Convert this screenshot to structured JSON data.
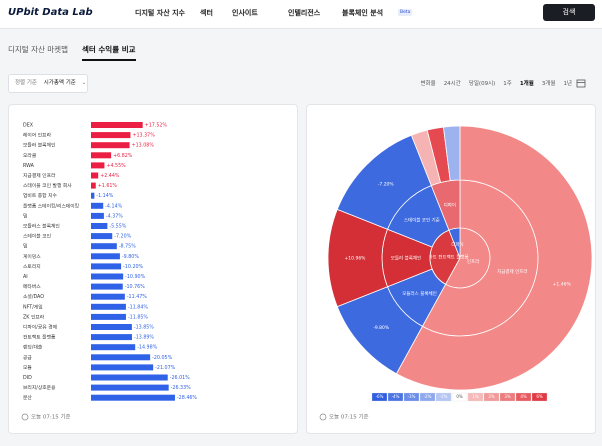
{
  "header": {
    "logo": "UPbit Data Lab",
    "nav": [
      "디지털 자산 지수",
      "섹터",
      "인사이트",
      "인텔리전스",
      "블록체인 분석"
    ],
    "beta": "Beta",
    "search": "검색"
  },
  "tabs": [
    "디지털 자산 마켓맵",
    "섹터 수익률 비교"
  ],
  "filter": {
    "label": "정렬 기준",
    "value": "시가총액 기준"
  },
  "periods": [
    "변화율",
    "24시간",
    "당일(09시)",
    "1주",
    "1개월",
    "3개월",
    "1년"
  ],
  "chart_data": [
    {
      "type": "bar",
      "categories": [
        "DEX",
        "레이어 인프라",
        "모듈러 블록체인",
        "오라클",
        "RWA",
        "지급결제 인프라",
        "스테이블 코인 발행 회사",
        "업비트 종합 지수",
        "플랫폼 스테이킹/리스테이킹",
        "밈",
        "모듈러스 블록체인",
        "스테이블 코인",
        "밈",
        "게이밍스",
        "스토리지",
        "AI",
        "메타버스",
        "소셜/DAO",
        "NFT/게임",
        "ZK 인프라",
        "디파이/공유 경제",
        "컨트랙트 플랫폼",
        "렌딩/대출",
        "공급",
        "모듈",
        "DID",
        "브리지/상호운용",
        "분산"
      ],
      "values": [
        17.52,
        13.37,
        13.08,
        6.82,
        4.55,
        2.44,
        1.61,
        -1.14,
        -4.14,
        -4.37,
        -5.55,
        -7.2,
        -8.75,
        -9.8,
        -10.2,
        -10.9,
        -10.76,
        -11.47,
        -11.84,
        -11.85,
        -13.85,
        -13.89,
        -14.98,
        -20.05,
        -21.07,
        -26.01,
        -26.33,
        -28.46
      ],
      "value_labels": [
        "+17.52%",
        "+13.37%",
        "+13.08%",
        "+6.82%",
        "+4.55%",
        "+2.44%",
        "+1.61%",
        "-1.14%",
        "-4.14%",
        "-4.37%",
        "-5.55%",
        "-7.20%",
        "-8.75%",
        "-9.80%",
        "-10.20%",
        "-10.90%",
        "-10.76%",
        "-11.47%",
        "-11.84%",
        "-11.85%",
        "-13.85%",
        "-13.89%",
        "-14.98%",
        "-20.05%",
        "-21.07%",
        "-26.01%",
        "-26.33%",
        "-28.46%"
      ],
      "positive_color": "#ea1f43",
      "negative_color": "#2f62e6",
      "footnote": "오늘 07:15 기준"
    },
    {
      "type": "sunburst",
      "levels": [
        [
          {
            "name": "인프라",
            "share": 58,
            "color": "#f38888"
          },
          {
            "name": "스마트 컨트랙트 플랫폼",
            "share": 36,
            "color": "#d83a3f"
          },
          {
            "name": "디파이",
            "share": 6,
            "color": "#3e6ae0"
          }
        ],
        [
          {
            "name": "지급결제 인프라",
            "share": 58,
            "color": "#f38888"
          },
          {
            "name": "모듈러스 블록체인",
            "share": 11,
            "color": "#3e6ae0"
          },
          {
            "name": "모듈러 블록체인",
            "share": 12,
            "color": "#d42f37"
          },
          {
            "name": "스테이블 코인 기준",
            "share": 13,
            "color": "#3e6ae0"
          },
          {
            "name": "디파이",
            "share": 6,
            "color": "#e86a70"
          }
        ],
        [
          {
            "label": "+1.46%",
            "share": 58,
            "color": "#f38888"
          },
          {
            "label": "-9.80%",
            "share": 11,
            "color": "#3e6ae0"
          },
          {
            "label": "+10.96%",
            "share": 12,
            "color": "#d42f37"
          },
          {
            "label": "-7.20%",
            "share": 13,
            "color": "#3e6ae0"
          },
          {
            "share": 2,
            "color": "#f6b3b3"
          },
          {
            "share": 2,
            "color": "#e54a50"
          },
          {
            "share": 2,
            "color": "#9db3f0"
          }
        ]
      ],
      "legend": {
        "labels": [
          "-6%",
          "-4%",
          "-3%",
          "-2%",
          "-1%",
          "0%",
          "1%",
          "2%",
          "3%",
          "4%",
          "6%"
        ],
        "colors": [
          "#2f5fe0",
          "#4a74e6",
          "#6a8cea",
          "#8ea8ef",
          "#b5c6f4",
          "#ffffff",
          "#f7b9b9",
          "#f29a9a",
          "#ee7b7d",
          "#e85a5f",
          "#e23a44"
        ]
      },
      "footnote": "오늘 07:15 기준"
    }
  ]
}
